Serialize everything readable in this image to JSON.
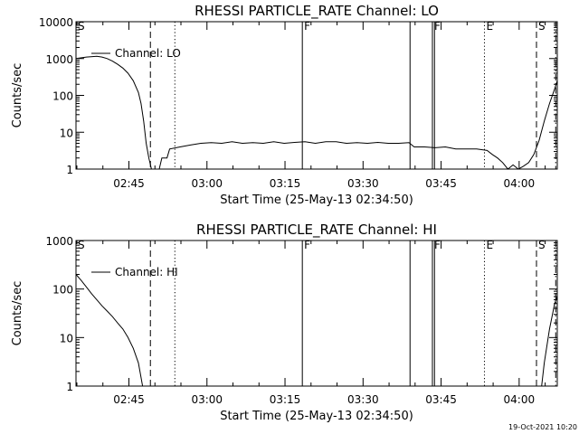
{
  "footer_timestamp": "19-Oct-2021 10:20",
  "chart_data": [
    {
      "type": "line",
      "title": "RHESSI PARTICLE_RATE Channel: LO",
      "xlabel": "Start Time (25-May-13 02:34:50)",
      "ylabel": "Counts/sec",
      "legend": {
        "label": "Channel: LO",
        "placement": "top-left"
      },
      "x_units": "minutes after 02:34:50",
      "xlim": [
        0,
        92.5
      ],
      "ylim": [
        1,
        10000
      ],
      "yscale": "log",
      "xticks": [
        {
          "x": 10.17,
          "label": "02:45"
        },
        {
          "x": 25.17,
          "label": "03:00"
        },
        {
          "x": 40.17,
          "label": "03:15"
        },
        {
          "x": 55.17,
          "label": "03:30"
        },
        {
          "x": 70.17,
          "label": "03:45"
        },
        {
          "x": 85.17,
          "label": "04:00"
        }
      ],
      "yticks": [
        {
          "y": 1,
          "label": "1"
        },
        {
          "y": 10,
          "label": "10"
        },
        {
          "y": 100,
          "label": "100"
        },
        {
          "y": 1000,
          "label": "1000"
        },
        {
          "y": 10000,
          "label": "10000"
        }
      ],
      "markers": [
        {
          "x": 0.0,
          "style": "dash",
          "label": "S"
        },
        {
          "x": 14.3,
          "style": "dash",
          "label": ""
        },
        {
          "x": 19.0,
          "style": "dot",
          "label": ""
        },
        {
          "x": 43.5,
          "style": "solid",
          "label": "F"
        },
        {
          "x": 64.2,
          "style": "solid",
          "label": ""
        },
        {
          "x": 68.5,
          "style": "solid",
          "label": "F"
        },
        {
          "x": 68.9,
          "style": "solid",
          "label": ""
        },
        {
          "x": 78.5,
          "style": "dot",
          "label": "E"
        },
        {
          "x": 88.5,
          "style": "dash",
          "label": "S"
        },
        {
          "x": 92.2,
          "style": "dashdot",
          "label": ""
        }
      ],
      "series": [
        {
          "name": "Channel: LO",
          "points": [
            [
              0,
              1000
            ],
            [
              2,
              1100
            ],
            [
              4,
              1150
            ],
            [
              5,
              1100
            ],
            [
              6,
              1000
            ],
            [
              7,
              850
            ],
            [
              8,
              700
            ],
            [
              9,
              550
            ],
            [
              10,
              400
            ],
            [
              11,
              250
            ],
            [
              12,
              120
            ],
            [
              12.5,
              60
            ],
            [
              13,
              20
            ],
            [
              13.5,
              5
            ],
            [
              14,
              2
            ],
            [
              14.5,
              1
            ],
            [
              16,
              1
            ],
            [
              16.5,
              2
            ],
            [
              17.5,
              2
            ],
            [
              18,
              3.5
            ],
            [
              20,
              4
            ],
            [
              22,
              4.5
            ],
            [
              24,
              5
            ],
            [
              26,
              5.2
            ],
            [
              28,
              5
            ],
            [
              30,
              5.5
            ],
            [
              32,
              5
            ],
            [
              34,
              5.2
            ],
            [
              36,
              5
            ],
            [
              38,
              5.5
            ],
            [
              40,
              5
            ],
            [
              42,
              5.3
            ],
            [
              44,
              5.5
            ],
            [
              46,
              5
            ],
            [
              48,
              5.5
            ],
            [
              50,
              5.5
            ],
            [
              52,
              5
            ],
            [
              54,
              5.2
            ],
            [
              56,
              5
            ],
            [
              58,
              5.3
            ],
            [
              60,
              5
            ],
            [
              62,
              5
            ],
            [
              64,
              5.2
            ],
            [
              65,
              4
            ],
            [
              67,
              4
            ],
            [
              69,
              3.8
            ],
            [
              71,
              4
            ],
            [
              73,
              3.5
            ],
            [
              75,
              3.5
            ],
            [
              77,
              3.5
            ],
            [
              79,
              3.2
            ],
            [
              80,
              2.5
            ],
            [
              81,
              2
            ],
            [
              82,
              1.5
            ],
            [
              83,
              1
            ],
            [
              84,
              1.3
            ],
            [
              85,
              1
            ],
            [
              86,
              1.2
            ],
            [
              87,
              1.5
            ],
            [
              88,
              2.5
            ],
            [
              89,
              6
            ],
            [
              90,
              20
            ],
            [
              91,
              60
            ],
            [
              92,
              150
            ],
            [
              92.5,
              250
            ]
          ]
        }
      ]
    },
    {
      "type": "line",
      "title": "RHESSI PARTICLE_RATE Channel: HI",
      "xlabel": "Start Time (25-May-13 02:34:50)",
      "ylabel": "Counts/sec",
      "legend": {
        "label": "Channel: HI",
        "placement": "top-left"
      },
      "x_units": "minutes after 02:34:50",
      "xlim": [
        0,
        92.5
      ],
      "ylim": [
        1,
        1000
      ],
      "yscale": "log",
      "xticks": [
        {
          "x": 10.17,
          "label": "02:45"
        },
        {
          "x": 25.17,
          "label": "03:00"
        },
        {
          "x": 40.17,
          "label": "03:15"
        },
        {
          "x": 55.17,
          "label": "03:30"
        },
        {
          "x": 70.17,
          "label": "03:45"
        },
        {
          "x": 85.17,
          "label": "04:00"
        }
      ],
      "yticks": [
        {
          "y": 1,
          "label": "1"
        },
        {
          "y": 10,
          "label": "10"
        },
        {
          "y": 100,
          "label": "100"
        },
        {
          "y": 1000,
          "label": "1000"
        }
      ],
      "markers": [
        {
          "x": 0.0,
          "style": "dash",
          "label": "S"
        },
        {
          "x": 14.3,
          "style": "dash",
          "label": ""
        },
        {
          "x": 19.0,
          "style": "dot",
          "label": ""
        },
        {
          "x": 43.5,
          "style": "solid",
          "label": "F"
        },
        {
          "x": 64.2,
          "style": "solid",
          "label": ""
        },
        {
          "x": 68.5,
          "style": "solid",
          "label": "F"
        },
        {
          "x": 68.9,
          "style": "solid",
          "label": ""
        },
        {
          "x": 78.5,
          "style": "dot",
          "label": "E"
        },
        {
          "x": 88.5,
          "style": "dash",
          "label": "S"
        },
        {
          "x": 92.2,
          "style": "dashdot",
          "label": ""
        }
      ],
      "series": [
        {
          "name": "Channel: HI",
          "points": [
            [
              0,
              200
            ],
            [
              1,
              150
            ],
            [
              2,
              110
            ],
            [
              3,
              80
            ],
            [
              4,
              60
            ],
            [
              5,
              45
            ],
            [
              6,
              35
            ],
            [
              7,
              27
            ],
            [
              8,
              20
            ],
            [
              9,
              15
            ],
            [
              10,
              10
            ],
            [
              11,
              6
            ],
            [
              12,
              3
            ],
            [
              12.5,
              1.5
            ],
            [
              12.8,
              1
            ],
            [
              89.5,
              1
            ],
            [
              90,
              3
            ],
            [
              91,
              15
            ],
            [
              92,
              50
            ],
            [
              92.5,
              70
            ]
          ]
        }
      ]
    }
  ]
}
